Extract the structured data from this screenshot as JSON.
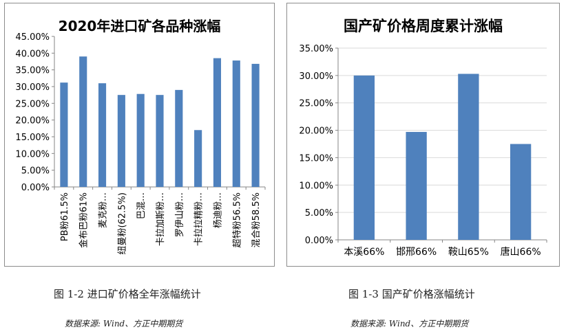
{
  "colors": {
    "bar": "#4f81bd",
    "axis": "#868686",
    "grid": "#d9d9d9",
    "text": "#000000"
  },
  "captions": {
    "left": "图 1-2 进口矿价格全年涨幅统计",
    "right": "图 1-3 国产矿价格涨幅统计"
  },
  "sources": {
    "left": "数据来源: Wind、方正中期期货",
    "right": "数据来源: Wind、方正中期期货"
  },
  "chart_data": [
    {
      "type": "bar",
      "title": "2020年进口矿各品种涨幅",
      "categories": [
        "PB粉61.5%",
        "金布巴粉61%",
        "麦克粉…",
        "纽曼粉(62.5%)",
        "巴混…",
        "卡拉加斯粉…",
        "罗伊山粉…",
        "卡拉拉精粉…",
        "杨迪粉…",
        "超特粉56.5%",
        "混合粉58.5%"
      ],
      "values": [
        31.2,
        39.0,
        31.0,
        27.5,
        27.8,
        27.5,
        29.0,
        17.0,
        38.5,
        37.8,
        36.8
      ],
      "ylim": [
        0,
        45
      ],
      "yticks": [
        "0.00%",
        "5.00%",
        "10.00%",
        "15.00%",
        "20.00%",
        "25.00%",
        "30.00%",
        "35.00%",
        "40.00%",
        "45.00%"
      ],
      "grid": false,
      "xlabel": "",
      "ylabel": ""
    },
    {
      "type": "bar",
      "title": "国产矿价格周度累计涨幅",
      "categories": [
        "本溪66%",
        "邯邢66%",
        "鞍山65%",
        "唐山66%"
      ],
      "values": [
        30.0,
        19.7,
        30.3,
        17.5
      ],
      "ylim": [
        0,
        35
      ],
      "yticks": [
        "0.00%",
        "5.00%",
        "10.00%",
        "15.00%",
        "20.00%",
        "25.00%",
        "30.00%",
        "35.00%"
      ],
      "grid": true,
      "xlabel": "",
      "ylabel": ""
    }
  ]
}
